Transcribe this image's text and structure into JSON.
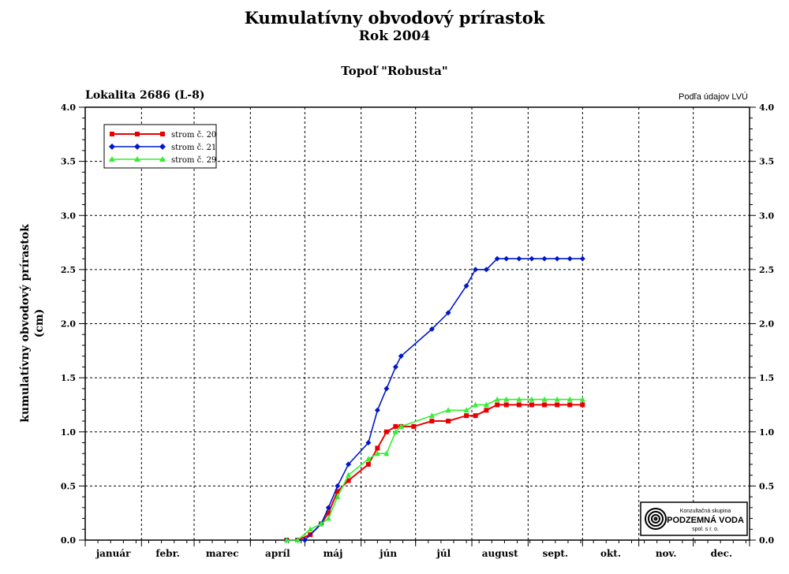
{
  "header": {
    "title": "Kumulatívny obvodový prírastok",
    "subtitle": "Rok 2004",
    "species": "Topoľ \"Robusta\"",
    "location": "Lokalita 2686 (L-8)",
    "source": "Podľa údajov LVÚ"
  },
  "logo": {
    "line1": "Konzultačná skupina",
    "line2": "PODZEMNÁ VODA",
    "line3": "spol. s r. o."
  },
  "colors": {
    "series_20": "#e80000",
    "series_21": "#0018c8",
    "series_29": "#30f030"
  },
  "chart_data": {
    "type": "line",
    "ylabel_line1": "kumulatívny obvodový prírastok",
    "ylabel_line2": "(cm)",
    "ylim": [
      0,
      4.0
    ],
    "yticks": [
      "0.0",
      "0.5",
      "1.0",
      "1.5",
      "2.0",
      "2.5",
      "3.0",
      "3.5",
      "4.0"
    ],
    "months": [
      "január",
      "febr.",
      "marec",
      "apríl",
      "máj",
      "jún",
      "júl",
      "august",
      "sept.",
      "okt.",
      "nov.",
      "dec."
    ],
    "grid": true,
    "legend_position": "top-left",
    "series": [
      {
        "name": "strom č. 20",
        "color_key": "series_20",
        "marker": "square",
        "x": [
          "2004-04-21",
          "2004-04-27",
          "2004-05-04",
          "2004-05-10",
          "2004-05-14",
          "2004-05-19",
          "2004-05-25",
          "2004-06-05",
          "2004-06-10",
          "2004-06-15",
          "2004-06-20",
          "2004-06-23",
          "2004-06-30",
          "2004-07-10",
          "2004-07-19",
          "2004-07-29",
          "2004-08-03",
          "2004-08-09",
          "2004-08-15",
          "2004-08-20",
          "2004-08-27",
          "2004-09-03",
          "2004-09-10",
          "2004-09-17",
          "2004-09-24",
          "2004-10-01"
        ],
        "y": [
          0.0,
          0.0,
          0.05,
          0.15,
          0.25,
          0.45,
          0.55,
          0.7,
          0.85,
          1.0,
          1.05,
          1.05,
          1.05,
          1.1,
          1.1,
          1.15,
          1.15,
          1.2,
          1.25,
          1.25,
          1.25,
          1.25,
          1.25,
          1.25,
          1.25,
          1.25
        ]
      },
      {
        "name": "strom č. 21",
        "color_key": "series_21",
        "marker": "diamond",
        "x": [
          "2004-04-21",
          "2004-04-27",
          "2004-05-01",
          "2004-05-10",
          "2004-05-14",
          "2004-05-19",
          "2004-05-25",
          "2004-06-05",
          "2004-06-10",
          "2004-06-15",
          "2004-06-20",
          "2004-06-23",
          "2004-07-10",
          "2004-07-19",
          "2004-07-29",
          "2004-08-03",
          "2004-08-09",
          "2004-08-15",
          "2004-08-20",
          "2004-08-27",
          "2004-09-03",
          "2004-09-10",
          "2004-09-17",
          "2004-09-24",
          "2004-10-01"
        ],
        "y": [
          0.0,
          0.0,
          0.0,
          0.15,
          0.3,
          0.5,
          0.7,
          0.9,
          1.2,
          1.4,
          1.6,
          1.7,
          1.95,
          2.1,
          2.35,
          2.5,
          2.5,
          2.6,
          2.6,
          2.6,
          2.6,
          2.6,
          2.6,
          2.6,
          2.6
        ]
      },
      {
        "name": "strom č. 29",
        "color_key": "series_29",
        "marker": "triangle",
        "x": [
          "2004-04-21",
          "2004-04-27",
          "2004-05-04",
          "2004-05-10",
          "2004-05-14",
          "2004-05-19",
          "2004-05-25",
          "2004-06-05",
          "2004-06-10",
          "2004-06-15",
          "2004-06-20",
          "2004-06-23",
          "2004-07-10",
          "2004-07-19",
          "2004-07-29",
          "2004-08-03",
          "2004-08-09",
          "2004-08-15",
          "2004-08-20",
          "2004-08-27",
          "2004-09-03",
          "2004-09-10",
          "2004-09-17",
          "2004-09-24",
          "2004-10-01"
        ],
        "y": [
          0.0,
          0.0,
          0.1,
          0.15,
          0.2,
          0.4,
          0.6,
          0.75,
          0.8,
          0.8,
          1.0,
          1.05,
          1.15,
          1.2,
          1.2,
          1.25,
          1.25,
          1.3,
          1.3,
          1.3,
          1.3,
          1.3,
          1.3,
          1.3,
          1.3
        ]
      }
    ]
  }
}
